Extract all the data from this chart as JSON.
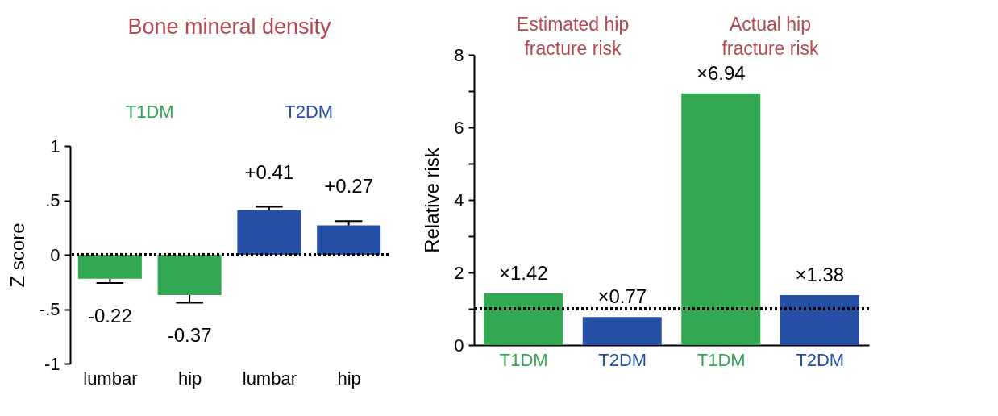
{
  "chart_data": [
    {
      "type": "bar",
      "title": "Bone mineral density",
      "ylabel": "Z score",
      "categories": [
        "lumbar",
        "hip",
        "lumbar",
        "hip"
      ],
      "values": [
        -0.22,
        -0.37,
        0.41,
        0.27
      ],
      "colors": [
        "#33a852",
        "#33a852",
        "#2650a6",
        "#2650a6"
      ],
      "errors": [
        [
          -0.26,
          -0.22
        ],
        [
          -0.44,
          -0.37
        ],
        [
          0.41,
          0.44
        ],
        [
          0.27,
          0.31
        ]
      ],
      "value_labels": [
        "-0.22",
        "-0.37",
        "+0.41",
        "+0.27"
      ],
      "ylim": [
        -1,
        1
      ],
      "yticks": [
        {
          "value": -1,
          "label": "-1"
        },
        {
          "value": -0.5,
          "label": "-.5"
        },
        0,
        {
          "value": 0.5,
          "label": ".5"
        },
        1
      ],
      "ref_lines": [
        {
          "axis": "y",
          "value": 0,
          "line_style": "dotted"
        }
      ],
      "annotations": [
        "T1DM",
        "T2DM"
      ],
      "grid": false
    },
    {
      "type": "bar",
      "ylabel": "Relative risk",
      "categories": [
        "T1DM",
        "T2DM",
        "T1DM",
        "T2DM"
      ],
      "values": [
        1.42,
        0.77,
        6.94,
        1.38
      ],
      "colors": [
        "#33a852",
        "#2650a6",
        "#33a852",
        "#2650a6"
      ],
      "value_labels": [
        "×1.42",
        "×0.77",
        "×6.94",
        "×1.38"
      ],
      "ylim": [
        0,
        8
      ],
      "yticks": [
        0,
        {
          "value": 1,
          "label": null
        },
        2,
        {
          "value": 3,
          "label": null
        },
        4,
        {
          "value": 5,
          "label": null
        },
        6,
        {
          "value": 7,
          "label": null
        },
        8
      ],
      "ref_lines": [
        {
          "axis": "y",
          "value": 1,
          "line_style": "dotted"
        }
      ],
      "annotations": [
        "Estimated hip fracture risk",
        "Actual hip fracture risk"
      ],
      "grid": false
    }
  ]
}
